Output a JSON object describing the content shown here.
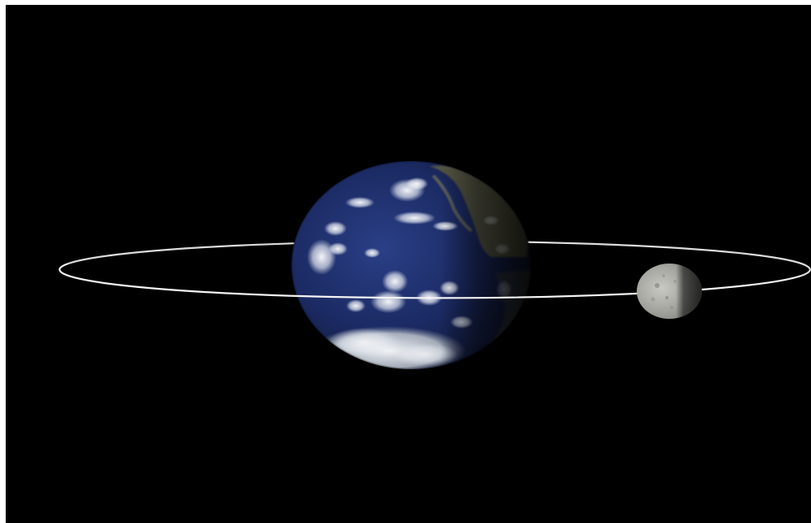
{
  "scene": {
    "background_color": "#000000",
    "frame_color": "#ffffff",
    "earth": {
      "ocean_color": "#1c2a5e",
      "land_color": "#6b6a4f",
      "cloud_color": "#e9eef5",
      "night_side_color": "#0a0d16"
    },
    "moon": {
      "lit_color": "#bdbdb7",
      "shadow_color": "#3c3c3a"
    },
    "orbit": {
      "color": "#f2f2f2"
    }
  }
}
